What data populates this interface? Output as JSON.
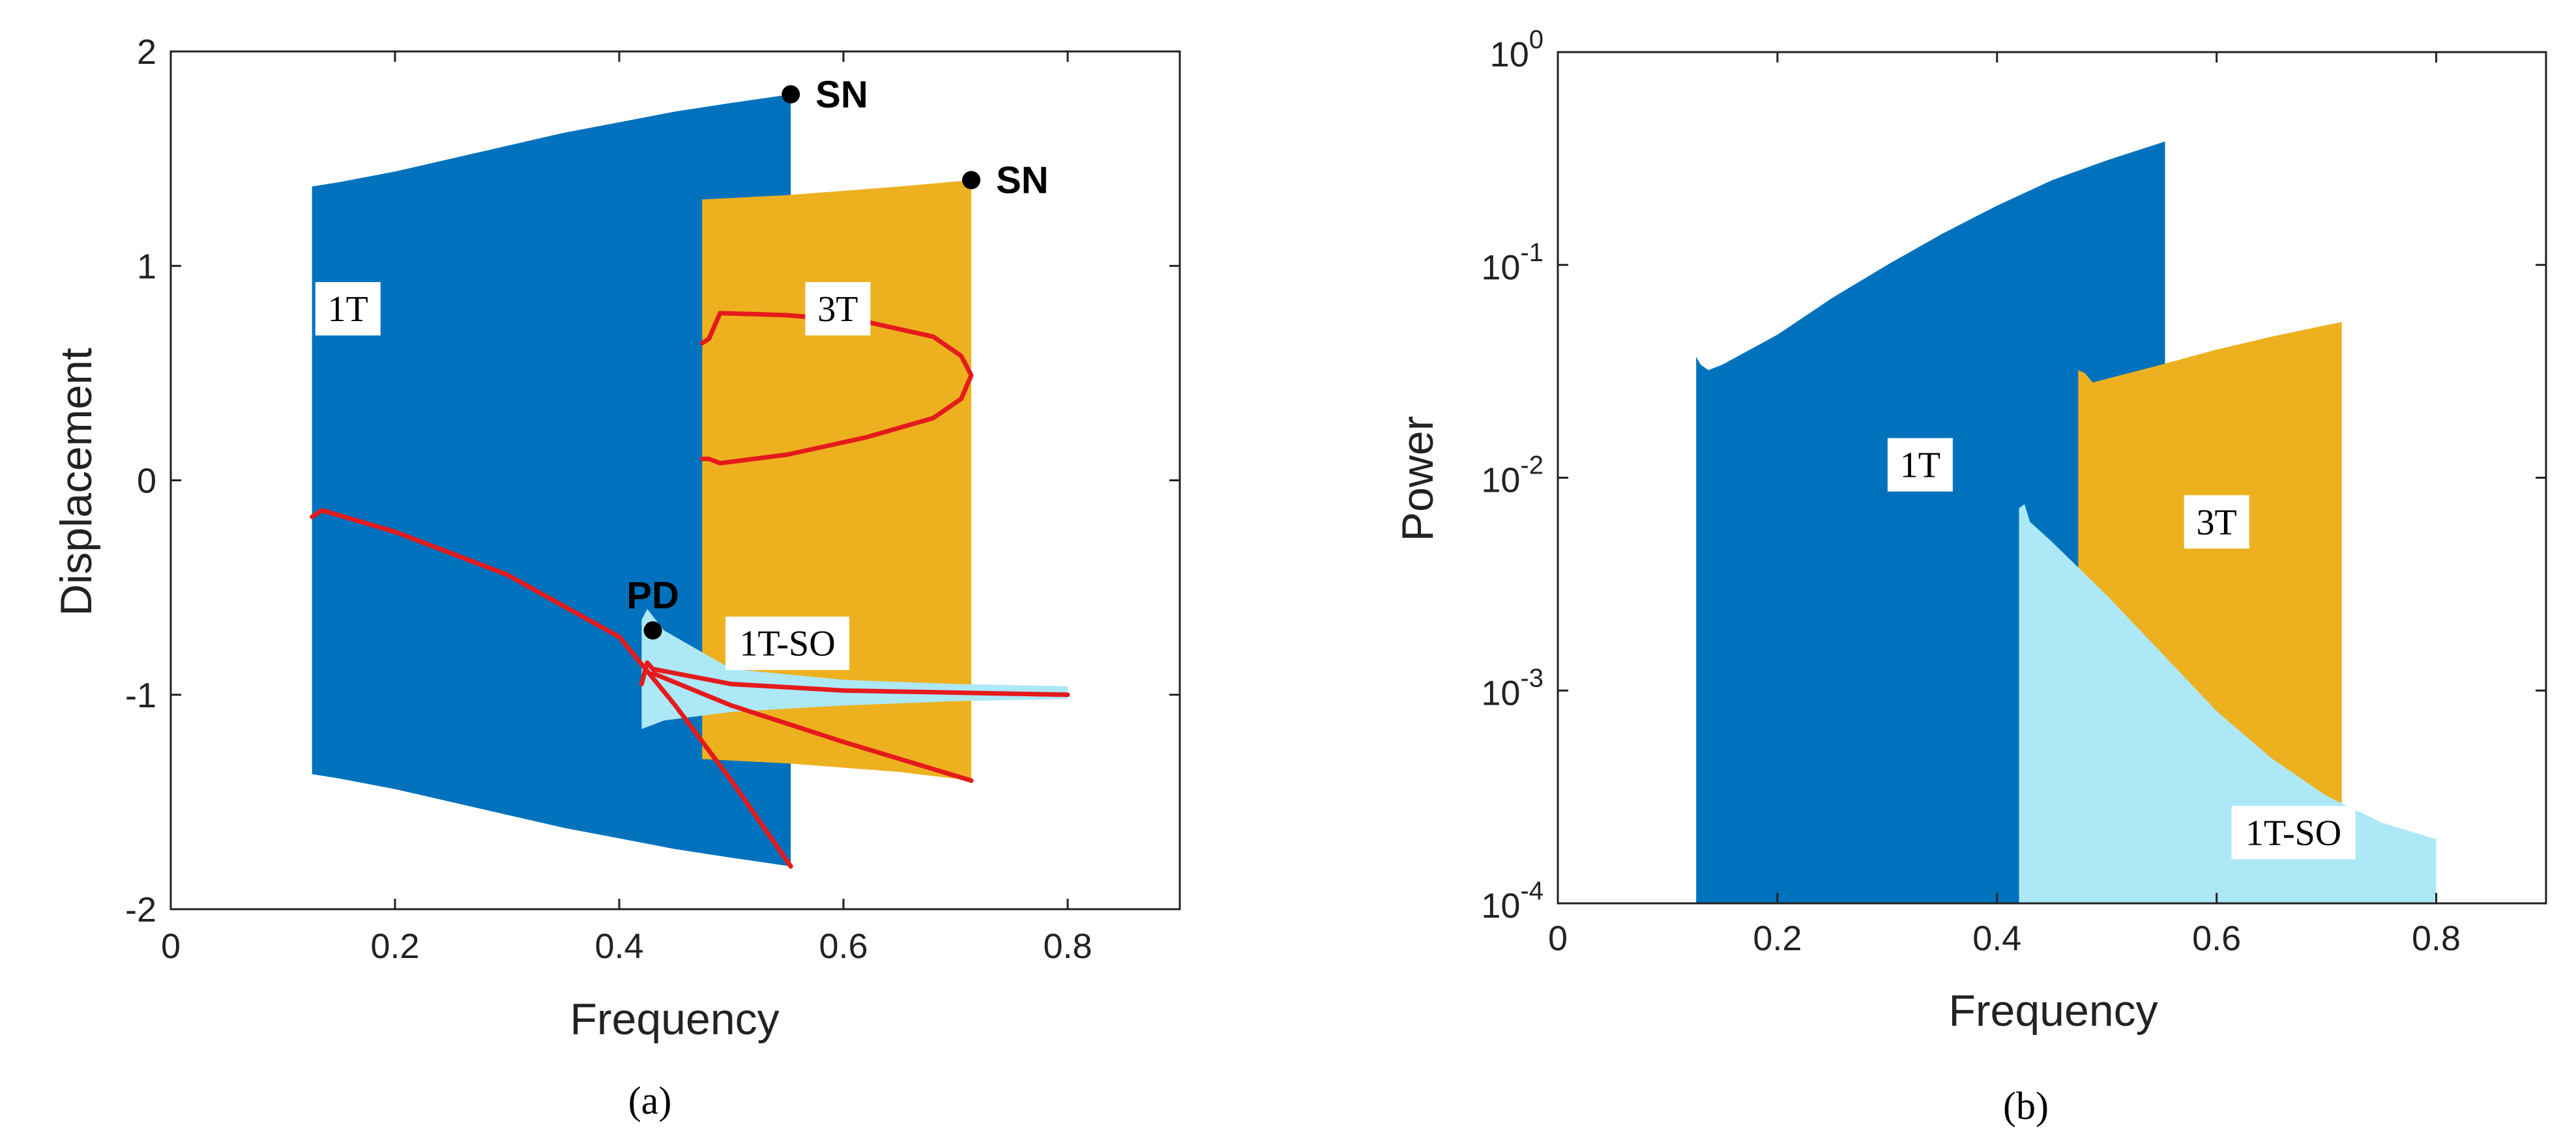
{
  "chart_data": [
    {
      "type": "area",
      "panel_label": "(a)",
      "xlabel": "Frequency",
      "ylabel": "Displacement",
      "xlim": [
        0,
        0.9
      ],
      "ylim": [
        -2,
        2
      ],
      "xticks": [
        0,
        0.2,
        0.4,
        0.6,
        0.8
      ],
      "xtick_labels": [
        "0",
        "0.2",
        "0.4",
        "0.6",
        "0.8"
      ],
      "yticks": [
        -2,
        -1,
        0,
        1,
        2
      ],
      "ytick_labels": [
        "-2",
        "-1",
        "0",
        "1",
        "2"
      ],
      "colors": {
        "1T": "#0072BD",
        "3T": "#EDB120",
        "1T-SO": "#ADE8F7",
        "stable": "#E41A1C",
        "marker": "#000000"
      },
      "regions": [
        {
          "name": "1T",
          "label": "1T",
          "color": "#0072BD",
          "x": [
            0.126,
            0.15,
            0.2,
            0.25,
            0.3,
            0.35,
            0.4,
            0.45,
            0.5,
            0.553
          ],
          "upper": [
            1.37,
            1.39,
            1.44,
            1.5,
            1.56,
            1.62,
            1.67,
            1.72,
            1.76,
            1.8
          ],
          "lower": [
            -1.37,
            -1.39,
            -1.44,
            -1.5,
            -1.56,
            -1.62,
            -1.67,
            -1.72,
            -1.76,
            -1.8
          ]
        },
        {
          "name": "3T",
          "label": "3T",
          "color": "#EDB120",
          "x": [
            0.474,
            0.55,
            0.6,
            0.65,
            0.714
          ],
          "upper": [
            1.31,
            1.33,
            1.35,
            1.37,
            1.4
          ],
          "lower": [
            -1.3,
            -1.32,
            -1.34,
            -1.36,
            -1.4
          ]
        },
        {
          "name": "1T-SO",
          "label": "1T-SO",
          "color": "#ADE8F7",
          "x": [
            0.42,
            0.425,
            0.44,
            0.5,
            0.6,
            0.7,
            0.8
          ],
          "upper": [
            -0.65,
            -0.6,
            -0.7,
            -0.88,
            -0.93,
            -0.95,
            -0.96
          ],
          "lower": [
            -1.16,
            -1.15,
            -1.12,
            -1.08,
            -1.05,
            -1.03,
            -1.02
          ]
        }
      ],
      "stable_branches": [
        {
          "name": "1T lower branch",
          "x": [
            0.126,
            0.135,
            0.2,
            0.3,
            0.4,
            0.45,
            0.5,
            0.553
          ],
          "y": [
            -0.17,
            -0.14,
            -0.24,
            -0.44,
            -0.73,
            -1.05,
            -1.4,
            -1.8
          ]
        },
        {
          "name": "1T-SO branch",
          "x": [
            0.42,
            0.425,
            0.43,
            0.5,
            0.6,
            0.7,
            0.8
          ],
          "y": [
            -0.95,
            -0.85,
            -0.88,
            -0.95,
            -0.98,
            -0.99,
            -1.0
          ]
        },
        {
          "name": "3T lower branch",
          "x": [
            0.43,
            0.5,
            0.6,
            0.714
          ],
          "y": [
            -0.9,
            -1.05,
            -1.22,
            -1.4
          ]
        },
        {
          "name": "3T loop",
          "x": [
            0.474,
            0.48,
            0.49,
            0.55,
            0.62,
            0.68,
            0.705,
            0.714,
            0.705,
            0.68,
            0.62,
            0.55,
            0.49,
            0.48,
            0.474
          ],
          "y": [
            0.64,
            0.66,
            0.78,
            0.77,
            0.74,
            0.67,
            0.58,
            0.49,
            0.38,
            0.29,
            0.2,
            0.12,
            0.08,
            0.1,
            0.1
          ]
        }
      ],
      "points": [
        {
          "label": "SN",
          "x": 0.553,
          "y": 1.8
        },
        {
          "label": "SN",
          "x": 0.714,
          "y": 1.4
        },
        {
          "label": "PD",
          "x": 0.43,
          "y": -0.7
        }
      ]
    },
    {
      "type": "area",
      "panel_label": "(b)",
      "xlabel": "Frequency",
      "ylabel": "Power",
      "yscale": "log",
      "xlim": [
        0,
        0.9
      ],
      "ylim": [
        0.0001,
        1
      ],
      "xticks": [
        0,
        0.2,
        0.4,
        0.6,
        0.8
      ],
      "xtick_labels": [
        "0",
        "0.2",
        "0.4",
        "0.6",
        "0.8"
      ],
      "yticks": [
        0.0001,
        0.001,
        0.01,
        0.1,
        1
      ],
      "ytick_labels": [
        {
          "base": "10",
          "exp": "-4"
        },
        {
          "base": "10",
          "exp": "-3"
        },
        {
          "base": "10",
          "exp": "-2"
        },
        {
          "base": "10",
          "exp": "-1"
        },
        {
          "base": "10",
          "exp": "0"
        }
      ],
      "regions": [
        {
          "name": "1T",
          "label": "1T",
          "color": "#0072BD",
          "x": [
            0.126,
            0.13,
            0.137,
            0.15,
            0.2,
            0.25,
            0.3,
            0.35,
            0.4,
            0.45,
            0.5,
            0.553
          ],
          "upper": [
            0.037,
            0.034,
            0.032,
            0.034,
            0.047,
            0.07,
            0.1,
            0.14,
            0.19,
            0.25,
            0.31,
            0.38
          ],
          "lower": [
            0.0001,
            0.0001,
            0.0001,
            0.0001,
            0.0001,
            0.0001,
            0.0001,
            0.0001,
            0.0001,
            0.0001,
            0.0001,
            0.0001
          ]
        },
        {
          "name": "3T",
          "label": "3T",
          "color": "#EDB120",
          "x": [
            0.474,
            0.48,
            0.487,
            0.55,
            0.6,
            0.65,
            0.714
          ],
          "upper": [
            0.032,
            0.031,
            0.028,
            0.034,
            0.04,
            0.046,
            0.054
          ],
          "lower": [
            0.0001,
            0.0001,
            0.0001,
            0.0001,
            0.0001,
            0.0001,
            0.0001
          ]
        },
        {
          "name": "1T-SO",
          "label": "1T-SO",
          "color": "#ADE8F7",
          "x": [
            0.42,
            0.425,
            0.43,
            0.45,
            0.5,
            0.55,
            0.6,
            0.65,
            0.7,
            0.75,
            0.8
          ],
          "upper": [
            0.0072,
            0.0075,
            0.0062,
            0.005,
            0.0028,
            0.0015,
            0.0008,
            0.00048,
            0.00032,
            0.00024,
            0.0002
          ],
          "lower": [
            0.0001,
            0.0001,
            0.0001,
            0.0001,
            0.0001,
            0.0001,
            0.0001,
            0.0001,
            0.0001,
            0.0001,
            0.0001
          ]
        }
      ]
    }
  ]
}
